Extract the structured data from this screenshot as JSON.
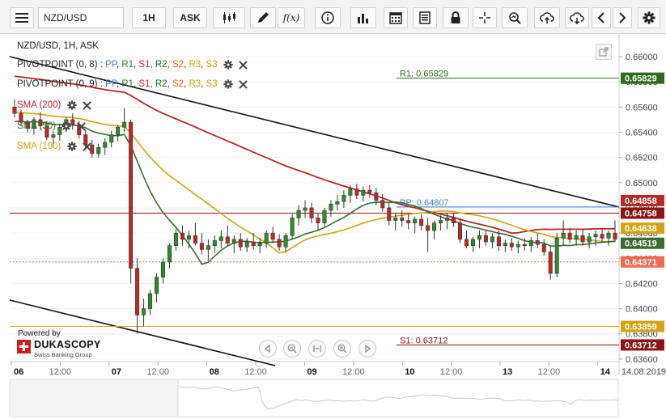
{
  "toolbar": {
    "symbol": "NZD/USD",
    "timeframe": "1H",
    "side": "ASK",
    "fx_label": "f(x)"
  },
  "chart_data": {
    "type": "candlestick",
    "title": "NZD/USD, 1H, ASK",
    "x_ticks": [
      {
        "label": "06",
        "major": true
      },
      {
        "label": "12:00",
        "major": false
      },
      {
        "label": "07",
        "major": true
      },
      {
        "label": "12:00",
        "major": false
      },
      {
        "label": "08",
        "major": true
      },
      {
        "label": "12:00",
        "major": false
      },
      {
        "label": "09",
        "major": true
      },
      {
        "label": "12:00",
        "major": false
      },
      {
        "label": "10",
        "major": true
      },
      {
        "label": "12:00",
        "major": false
      },
      {
        "label": "13",
        "major": true
      },
      {
        "label": "12:00",
        "major": false
      },
      {
        "label": "14",
        "major": true
      }
    ],
    "x_end_label": "14.08.2019",
    "ylim": [
      0.6358,
      0.6618
    ],
    "y_ticks": [
      "0.66000",
      "0.65800",
      "0.65600",
      "0.65400",
      "0.65200",
      "0.65000",
      "0.64800",
      "0.64600",
      "0.64400",
      "0.64200",
      "0.64000",
      "0.63800",
      "0.63600"
    ],
    "indicators": [
      {
        "name": "PIVOTPOINT (0, 8)",
        "suffix": ": "
      },
      {
        "name": "PIVOTPOINT (0, 9)",
        "suffix": ": "
      }
    ],
    "pivot_parts": [
      "PP",
      "R1",
      "S1",
      "R2",
      "S2",
      "R3",
      "S3"
    ],
    "sma": [
      {
        "name": "SMA (200)",
        "color": "#b22a2a"
      },
      {
        "name": "SMA (50)",
        "color": "#3b6b2e"
      },
      {
        "name": "SMA (100)",
        "color": "#d1a418"
      }
    ],
    "levels": [
      {
        "label": "R1: 0.65829",
        "value": 0.65829,
        "color": "#2f6b1e"
      },
      {
        "label": "PP: 0.64807",
        "value": 0.64807,
        "color": "#3e7fd2"
      },
      {
        "label": "S1: 0.63712",
        "value": 0.63712,
        "color": "#8b1414"
      }
    ],
    "price_tags": [
      {
        "text": "0.65829",
        "value": 0.65829,
        "color": "#2f6b1e"
      },
      {
        "text": "0.64858",
        "value": 0.64858,
        "color": "#b22a2a"
      },
      {
        "text": "0.64758",
        "value": 0.64758,
        "color": "#8b1414"
      },
      {
        "text": "0.64638",
        "value": 0.64638,
        "color": "#d1a418"
      },
      {
        "text": "0.64519",
        "value": 0.64519,
        "color": "#3b6b2e"
      },
      {
        "text": "0.64371",
        "value": 0.64371,
        "color": "#ef6a4e"
      },
      {
        "text": "0.63859",
        "value": 0.63859,
        "color": "#d1a418"
      },
      {
        "text": "0.63712",
        "value": 0.63712,
        "color": "#8b1414"
      }
    ],
    "candles": [
      [
        0.656,
        0.6566,
        0.6552,
        0.6555
      ],
      [
        0.6555,
        0.6558,
        0.6545,
        0.6548
      ],
      [
        0.6548,
        0.655,
        0.654,
        0.6543
      ],
      [
        0.6543,
        0.6552,
        0.6538,
        0.655
      ],
      [
        0.655,
        0.6556,
        0.6542,
        0.6545
      ],
      [
        0.6545,
        0.6549,
        0.6534,
        0.6536
      ],
      [
        0.6536,
        0.6541,
        0.6528,
        0.6538
      ],
      [
        0.6538,
        0.6547,
        0.6533,
        0.6544
      ],
      [
        0.6544,
        0.6552,
        0.654,
        0.655
      ],
      [
        0.655,
        0.6555,
        0.6542,
        0.6546
      ],
      [
        0.6546,
        0.6549,
        0.6535,
        0.6538
      ],
      [
        0.6538,
        0.6542,
        0.6526,
        0.653
      ],
      [
        0.653,
        0.6534,
        0.652,
        0.6523
      ],
      [
        0.6523,
        0.6531,
        0.652,
        0.6528
      ],
      [
        0.6528,
        0.6535,
        0.6522,
        0.6532
      ],
      [
        0.6532,
        0.6541,
        0.6528,
        0.6538
      ],
      [
        0.6538,
        0.6546,
        0.6533,
        0.6544
      ],
      [
        0.6544,
        0.6559,
        0.654,
        0.6548
      ],
      [
        0.6548,
        0.655,
        0.642,
        0.6432
      ],
      [
        0.6432,
        0.644,
        0.638,
        0.6395
      ],
      [
        0.6395,
        0.6408,
        0.6386,
        0.64
      ],
      [
        0.64,
        0.6415,
        0.6395,
        0.6412
      ],
      [
        0.6412,
        0.6428,
        0.6405,
        0.6425
      ],
      [
        0.6425,
        0.644,
        0.642,
        0.6437
      ],
      [
        0.6437,
        0.6452,
        0.6432,
        0.645
      ],
      [
        0.645,
        0.6463,
        0.6446,
        0.646
      ],
      [
        0.646,
        0.6466,
        0.645,
        0.6455
      ],
      [
        0.6455,
        0.6462,
        0.6448,
        0.6458
      ],
      [
        0.6458,
        0.6468,
        0.645,
        0.6452
      ],
      [
        0.6452,
        0.646,
        0.6443,
        0.6447
      ],
      [
        0.6447,
        0.6455,
        0.6438,
        0.645
      ],
      [
        0.645,
        0.6458,
        0.6444,
        0.6454
      ],
      [
        0.6454,
        0.6462,
        0.6448,
        0.6457
      ],
      [
        0.6457,
        0.6466,
        0.645,
        0.6452
      ],
      [
        0.6452,
        0.6458,
        0.6444,
        0.6455
      ],
      [
        0.6455,
        0.646,
        0.6446,
        0.6449
      ],
      [
        0.6449,
        0.6456,
        0.6445,
        0.6453
      ],
      [
        0.6453,
        0.646,
        0.6447,
        0.645
      ],
      [
        0.645,
        0.6456,
        0.6444,
        0.6452
      ],
      [
        0.6452,
        0.6462,
        0.6448,
        0.646
      ],
      [
        0.646,
        0.6465,
        0.6452,
        0.6455
      ],
      [
        0.6455,
        0.6459,
        0.6446,
        0.6449
      ],
      [
        0.6449,
        0.646,
        0.6445,
        0.6458
      ],
      [
        0.6458,
        0.6475,
        0.6455,
        0.6472
      ],
      [
        0.6472,
        0.6482,
        0.6466,
        0.6478
      ],
      [
        0.6478,
        0.6486,
        0.6472,
        0.648
      ],
      [
        0.648,
        0.6484,
        0.6468,
        0.6472
      ],
      [
        0.6472,
        0.6476,
        0.6462,
        0.6468
      ],
      [
        0.6468,
        0.648,
        0.6465,
        0.6478
      ],
      [
        0.6478,
        0.6486,
        0.6473,
        0.6483
      ],
      [
        0.6483,
        0.649,
        0.6478,
        0.6485
      ],
      [
        0.6485,
        0.6494,
        0.648,
        0.649
      ],
      [
        0.649,
        0.6498,
        0.6484,
        0.6495
      ],
      [
        0.6495,
        0.6499,
        0.6487,
        0.649
      ],
      [
        0.649,
        0.6497,
        0.6485,
        0.6494
      ],
      [
        0.6494,
        0.6498,
        0.6488,
        0.6492
      ],
      [
        0.6492,
        0.6496,
        0.6482,
        0.6486
      ],
      [
        0.6486,
        0.6491,
        0.6477,
        0.648
      ],
      [
        0.648,
        0.6484,
        0.6466,
        0.647
      ],
      [
        0.647,
        0.6476,
        0.6462,
        0.6472
      ],
      [
        0.6472,
        0.6478,
        0.6465,
        0.647
      ],
      [
        0.647,
        0.6475,
        0.6463,
        0.6468
      ],
      [
        0.6468,
        0.6473,
        0.646,
        0.6471
      ],
      [
        0.6471,
        0.6475,
        0.6462,
        0.6466
      ],
      [
        0.6466,
        0.6472,
        0.6445,
        0.6462
      ],
      [
        0.6462,
        0.647,
        0.6455,
        0.6468
      ],
      [
        0.6468,
        0.6474,
        0.6462,
        0.647
      ],
      [
        0.647,
        0.6476,
        0.6463,
        0.6472
      ],
      [
        0.6472,
        0.6476,
        0.6465,
        0.6468
      ],
      [
        0.6468,
        0.6472,
        0.6452,
        0.6455
      ],
      [
        0.6455,
        0.6462,
        0.6448,
        0.645
      ],
      [
        0.645,
        0.6457,
        0.6445,
        0.6455
      ],
      [
        0.6455,
        0.6462,
        0.6448,
        0.6458
      ],
      [
        0.6458,
        0.6462,
        0.645,
        0.6453
      ],
      [
        0.6453,
        0.646,
        0.6448,
        0.6457
      ],
      [
        0.6457,
        0.6462,
        0.6446,
        0.645
      ],
      [
        0.645,
        0.6455,
        0.6445,
        0.6452
      ],
      [
        0.6452,
        0.6456,
        0.6446,
        0.6449
      ],
      [
        0.6449,
        0.6454,
        0.6444,
        0.6451
      ],
      [
        0.6451,
        0.6456,
        0.6446,
        0.645
      ],
      [
        0.645,
        0.6457,
        0.6445,
        0.6454
      ],
      [
        0.6454,
        0.646,
        0.6448,
        0.6451
      ],
      [
        0.6451,
        0.6455,
        0.6442,
        0.6445
      ],
      [
        0.6445,
        0.645,
        0.6423,
        0.6428
      ],
      [
        0.6428,
        0.646,
        0.6425,
        0.6456
      ],
      [
        0.6456,
        0.647,
        0.645,
        0.646
      ],
      [
        0.646,
        0.6464,
        0.6452,
        0.6455
      ],
      [
        0.6455,
        0.6462,
        0.645,
        0.6458
      ],
      [
        0.6458,
        0.6463,
        0.645,
        0.6453
      ],
      [
        0.6453,
        0.646,
        0.6448,
        0.6457
      ],
      [
        0.6457,
        0.6462,
        0.645,
        0.6459
      ],
      [
        0.6459,
        0.6463,
        0.6453,
        0.6456
      ],
      [
        0.6456,
        0.6462,
        0.645,
        0.646
      ],
      [
        0.646,
        0.647,
        0.6453,
        0.6455
      ]
    ]
  }
}
